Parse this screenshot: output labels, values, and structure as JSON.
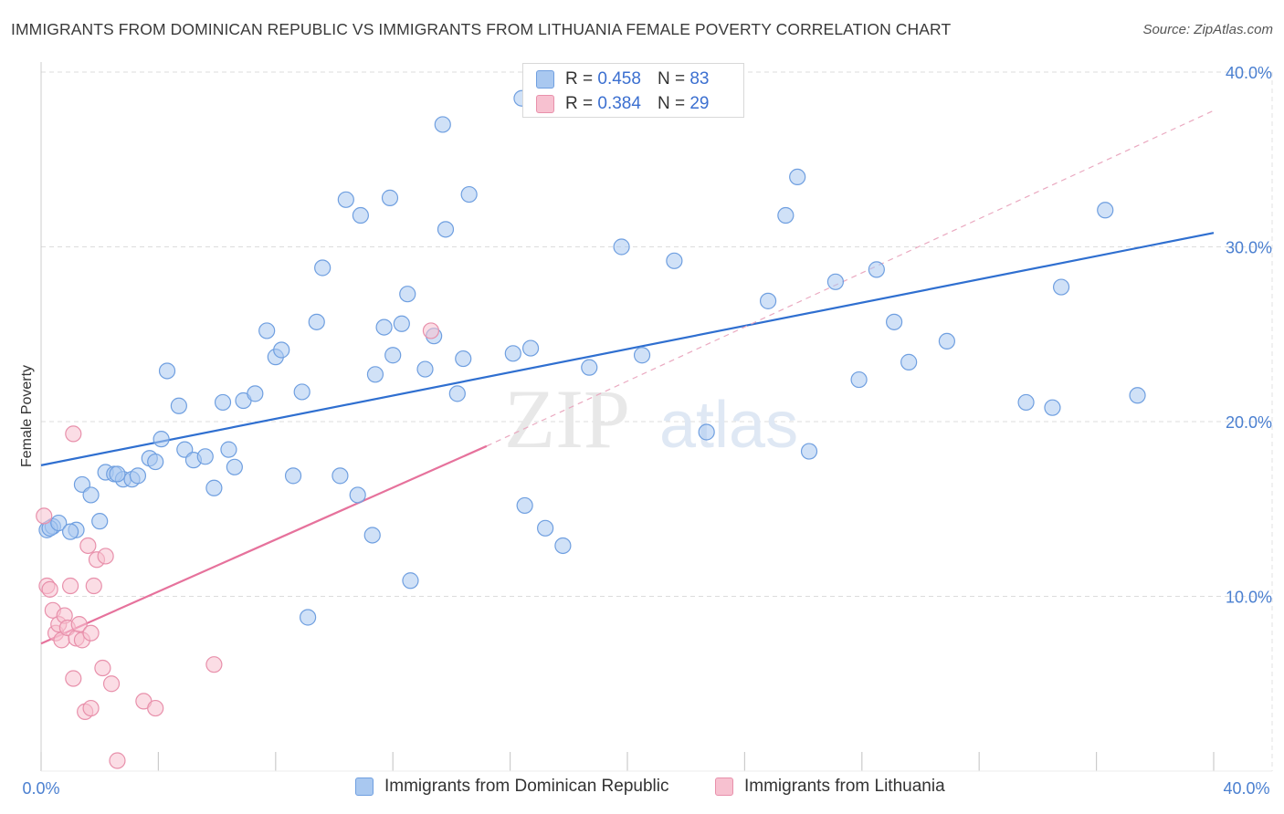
{
  "title": "IMMIGRANTS FROM DOMINICAN REPUBLIC VS IMMIGRANTS FROM LITHUANIA FEMALE POVERTY CORRELATION CHART",
  "source": "Source: ZipAtlas.com",
  "watermark": {
    "zip": "ZIP",
    "atlas": "atlas"
  },
  "legend_top": [
    {
      "r_label": "R =",
      "r_value": "0.458",
      "n_label": "N =",
      "n_value": "83",
      "color": "#a9c8f0",
      "border": "#6f9fe0"
    },
    {
      "r_label": "R =",
      "r_value": "0.384",
      "n_label": "N =",
      "n_value": "29",
      "color": "#f7c1d0",
      "border": "#e890ab"
    }
  ],
  "legend_bottom": [
    {
      "label": "Immigrants from Dominican Republic",
      "color": "#a9c8f0",
      "border": "#6f9fe0"
    },
    {
      "label": "Immigrants from Lithuania",
      "color": "#f7c1d0",
      "border": "#e890ab"
    }
  ],
  "chart_data": {
    "type": "scatter",
    "title": "IMMIGRANTS FROM DOMINICAN REPUBLIC VS IMMIGRANTS FROM LITHUANIA FEMALE POVERTY CORRELATION CHART",
    "xlabel": "",
    "ylabel": "Female Poverty",
    "xlim": [
      0,
      40
    ],
    "ylim": [
      0,
      40
    ],
    "x_tick_labels": [
      "0.0%",
      "40.0%"
    ],
    "y_ticks": [
      10,
      20,
      30,
      40
    ],
    "y_tick_labels": [
      "10.0%",
      "20.0%",
      "30.0%",
      "40.0%"
    ],
    "grid": true,
    "legend_position": "top-center",
    "series": [
      {
        "name": "Immigrants from Dominican Republic",
        "color": "#6f9fe0",
        "fill": "#a9c8f0",
        "trend": {
          "x0": 0,
          "y0": 17.5,
          "x1": 40,
          "y1": 30.8,
          "color": "#2f6fd0"
        },
        "points": [
          [
            0.2,
            13.8
          ],
          [
            0.4,
            14.0
          ],
          [
            1.2,
            13.8
          ],
          [
            1.4,
            16.4
          ],
          [
            1.7,
            15.8
          ],
          [
            2.0,
            14.3
          ],
          [
            2.2,
            17.1
          ],
          [
            2.5,
            17.0
          ],
          [
            2.8,
            16.7
          ],
          [
            3.1,
            16.7
          ],
          [
            3.3,
            16.9
          ],
          [
            3.7,
            17.9
          ],
          [
            3.9,
            17.7
          ],
          [
            4.1,
            19.0
          ],
          [
            4.3,
            22.9
          ],
          [
            4.7,
            20.9
          ],
          [
            4.9,
            18.4
          ],
          [
            5.2,
            17.8
          ],
          [
            5.6,
            18.0
          ],
          [
            5.9,
            16.2
          ],
          [
            6.2,
            21.1
          ],
          [
            6.4,
            18.4
          ],
          [
            6.6,
            17.4
          ],
          [
            6.9,
            21.2
          ],
          [
            7.3,
            21.6
          ],
          [
            7.7,
            25.2
          ],
          [
            8.0,
            23.7
          ],
          [
            8.2,
            24.1
          ],
          [
            8.6,
            16.9
          ],
          [
            8.9,
            21.7
          ],
          [
            9.1,
            8.8
          ],
          [
            9.4,
            25.7
          ],
          [
            9.6,
            28.8
          ],
          [
            10.2,
            16.9
          ],
          [
            10.4,
            32.7
          ],
          [
            10.8,
            15.8
          ],
          [
            10.9,
            31.8
          ],
          [
            11.3,
            13.5
          ],
          [
            11.4,
            22.7
          ],
          [
            11.7,
            25.4
          ],
          [
            11.9,
            32.8
          ],
          [
            12.0,
            23.8
          ],
          [
            12.3,
            25.6
          ],
          [
            12.5,
            27.3
          ],
          [
            12.6,
            10.9
          ],
          [
            13.1,
            23.0
          ],
          [
            13.4,
            24.9
          ],
          [
            13.7,
            37.0
          ],
          [
            13.8,
            31.0
          ],
          [
            14.2,
            21.6
          ],
          [
            14.4,
            23.6
          ],
          [
            14.6,
            33.0
          ],
          [
            16.1,
            23.9
          ],
          [
            16.4,
            38.5
          ],
          [
            16.5,
            15.2
          ],
          [
            16.7,
            24.2
          ],
          [
            17.2,
            13.9
          ],
          [
            17.8,
            12.9
          ],
          [
            18.7,
            23.1
          ],
          [
            19.8,
            30.0
          ],
          [
            20.5,
            23.8
          ],
          [
            21.3,
            39.4
          ],
          [
            21.6,
            29.2
          ],
          [
            22.7,
            19.4
          ],
          [
            24.8,
            26.9
          ],
          [
            25.4,
            31.8
          ],
          [
            25.8,
            34.0
          ],
          [
            26.2,
            18.3
          ],
          [
            27.1,
            28.0
          ],
          [
            27.9,
            22.4
          ],
          [
            28.5,
            28.7
          ],
          [
            29.1,
            25.7
          ],
          [
            29.6,
            23.4
          ],
          [
            30.9,
            24.6
          ],
          [
            33.6,
            21.1
          ],
          [
            34.5,
            20.8
          ],
          [
            34.8,
            27.7
          ],
          [
            36.3,
            32.1
          ],
          [
            37.4,
            21.5
          ],
          [
            0.3,
            13.9
          ],
          [
            0.6,
            14.2
          ],
          [
            1.0,
            13.7
          ],
          [
            2.6,
            17.0
          ]
        ]
      },
      {
        "name": "Immigrants from Lithuania",
        "color": "#e890ab",
        "fill": "#f7c1d0",
        "trend": {
          "x0": 0,
          "y0": 7.3,
          "x1": 15.2,
          "y1": 18.6,
          "color": "#e6729c",
          "dash_x1": 40,
          "dash_y1": 37.8
        },
        "points": [
          [
            0.1,
            14.6
          ],
          [
            0.2,
            10.6
          ],
          [
            0.3,
            10.4
          ],
          [
            0.4,
            9.2
          ],
          [
            0.5,
            7.9
          ],
          [
            0.6,
            8.4
          ],
          [
            0.7,
            7.5
          ],
          [
            0.8,
            8.9
          ],
          [
            0.9,
            8.2
          ],
          [
            1.0,
            10.6
          ],
          [
            1.1,
            5.3
          ],
          [
            1.1,
            19.3
          ],
          [
            1.2,
            7.6
          ],
          [
            1.3,
            8.4
          ],
          [
            1.4,
            7.5
          ],
          [
            1.5,
            3.4
          ],
          [
            1.6,
            12.9
          ],
          [
            1.7,
            3.6
          ],
          [
            1.7,
            7.9
          ],
          [
            1.8,
            10.6
          ],
          [
            1.9,
            12.1
          ],
          [
            2.1,
            5.9
          ],
          [
            2.2,
            12.3
          ],
          [
            2.4,
            5.0
          ],
          [
            2.6,
            0.6
          ],
          [
            3.5,
            4.0
          ],
          [
            3.9,
            3.6
          ],
          [
            5.9,
            6.1
          ],
          [
            13.3,
            25.2
          ]
        ]
      }
    ]
  }
}
